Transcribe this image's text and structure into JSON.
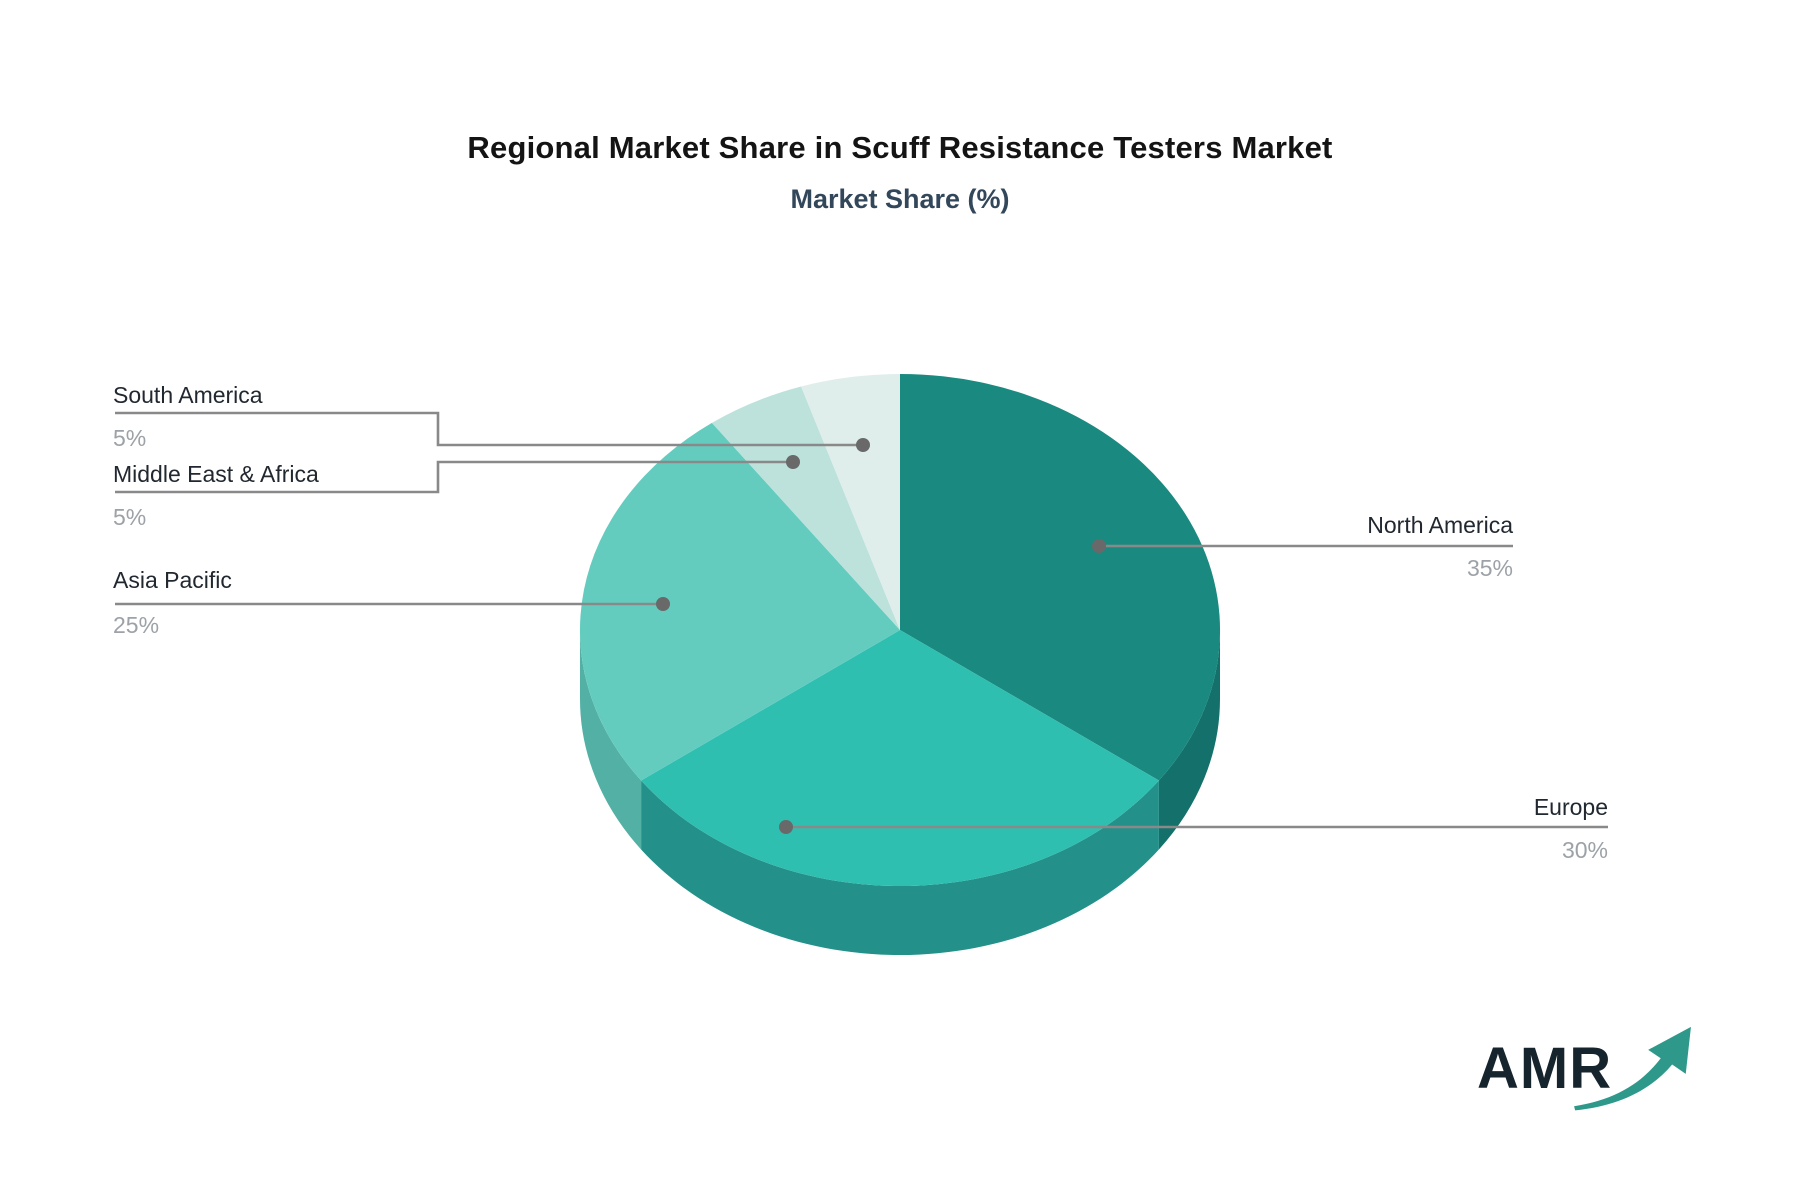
{
  "header": {
    "title": "Regional Market Share in Scuff Resistance Testers Market",
    "subtitle": "Market Share (%)"
  },
  "logo": {
    "text": "AMR",
    "arrow_color": "#2E998B",
    "text_color": "#16242E"
  },
  "chart_data": {
    "type": "pie",
    "style": "3d-pie",
    "title": "Regional Market Share in Scuff Resistance Testers Market",
    "subtitle": "Market Share (%)",
    "unit": "%",
    "start_angle_deg": 0,
    "direction": "clockwise",
    "legend": "none",
    "labels_layout": "callout-lines-with-dots",
    "slices": [
      {
        "label": "North America",
        "value": 35,
        "display": "35%",
        "color": "#1A8A80",
        "side_color": "#14706A"
      },
      {
        "label": "Europe",
        "value": 30,
        "display": "30%",
        "color": "#2FBFB0",
        "side_color": "#23908A"
      },
      {
        "label": "Asia Pacific",
        "value": 25,
        "display": "25%",
        "color": "#63CCBF",
        "side_color": "#52B0A4"
      },
      {
        "label": "Middle East & Africa",
        "value": 5,
        "display": "5%",
        "color": "#BCE2DB",
        "side_color": "#A9D6CE"
      },
      {
        "label": "South America",
        "value": 5,
        "display": "5%",
        "color": "#E0EEEB",
        "side_color": "#C9E1DC"
      }
    ],
    "colors": {
      "connector_line": "#898989",
      "connector_dot": "#696969",
      "label_text": "#212830",
      "percent_text": "#9CA2A7",
      "title_text": "#141414",
      "subtitle_text": "#33475B"
    }
  }
}
